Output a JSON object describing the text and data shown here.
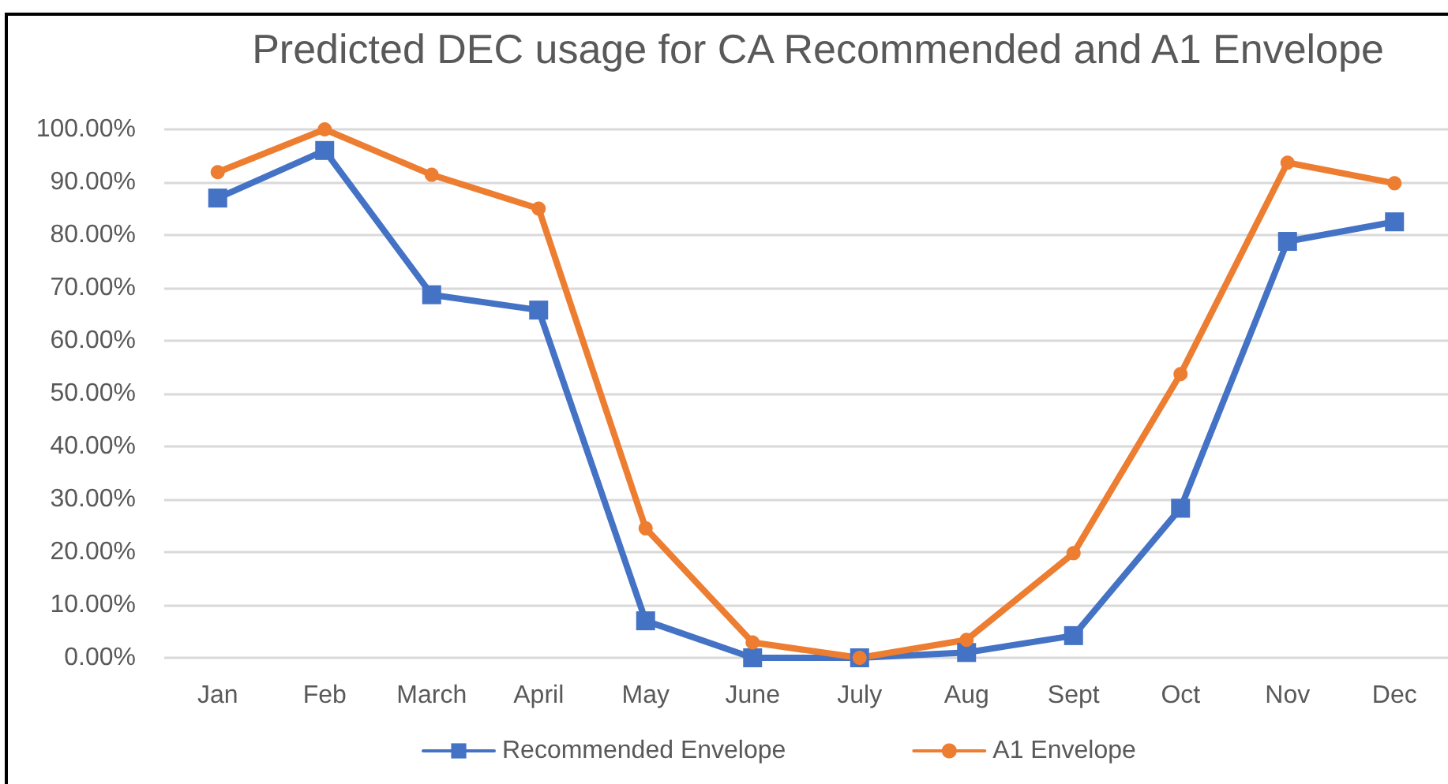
{
  "chart_data": {
    "type": "line",
    "title": "Predicted DEC usage for CA Recommended and A1 Envelope",
    "categories": [
      "Jan",
      "Feb",
      "March",
      "April",
      "May",
      "June",
      "July",
      "Aug",
      "Sept",
      "Oct",
      "Nov",
      "Dec"
    ],
    "series": [
      {
        "name": "Recommended Envelope",
        "color": "#4472c4",
        "marker": "square",
        "values": [
          87.0,
          96.0,
          68.7,
          65.8,
          7.0,
          0.0,
          0.0,
          1.0,
          4.2,
          28.3,
          78.8,
          82.5
        ]
      },
      {
        "name": "A1 Envelope",
        "color": "#ed7d31",
        "marker": "circle",
        "values": [
          91.9,
          100.0,
          91.4,
          85.0,
          24.5,
          2.9,
          0.0,
          3.4,
          19.8,
          53.7,
          93.7,
          89.8
        ]
      }
    ],
    "ylim": [
      0,
      100
    ],
    "yticks": [
      {
        "value": 0,
        "label": "0.00%"
      },
      {
        "value": 10,
        "label": "10.00%"
      },
      {
        "value": 20,
        "label": "20.00%"
      },
      {
        "value": 30,
        "label": "30.00%"
      },
      {
        "value": 40,
        "label": "40.00%"
      },
      {
        "value": 50,
        "label": "50.00%"
      },
      {
        "value": 60,
        "label": "60.00%"
      },
      {
        "value": 70,
        "label": "70.00%"
      },
      {
        "value": 80,
        "label": "80.00%"
      },
      {
        "value": 90,
        "label": "90.00%"
      },
      {
        "value": 100,
        "label": "100.00%"
      }
    ],
    "grid": "y",
    "legend": "bottom",
    "line_style": "solid"
  }
}
